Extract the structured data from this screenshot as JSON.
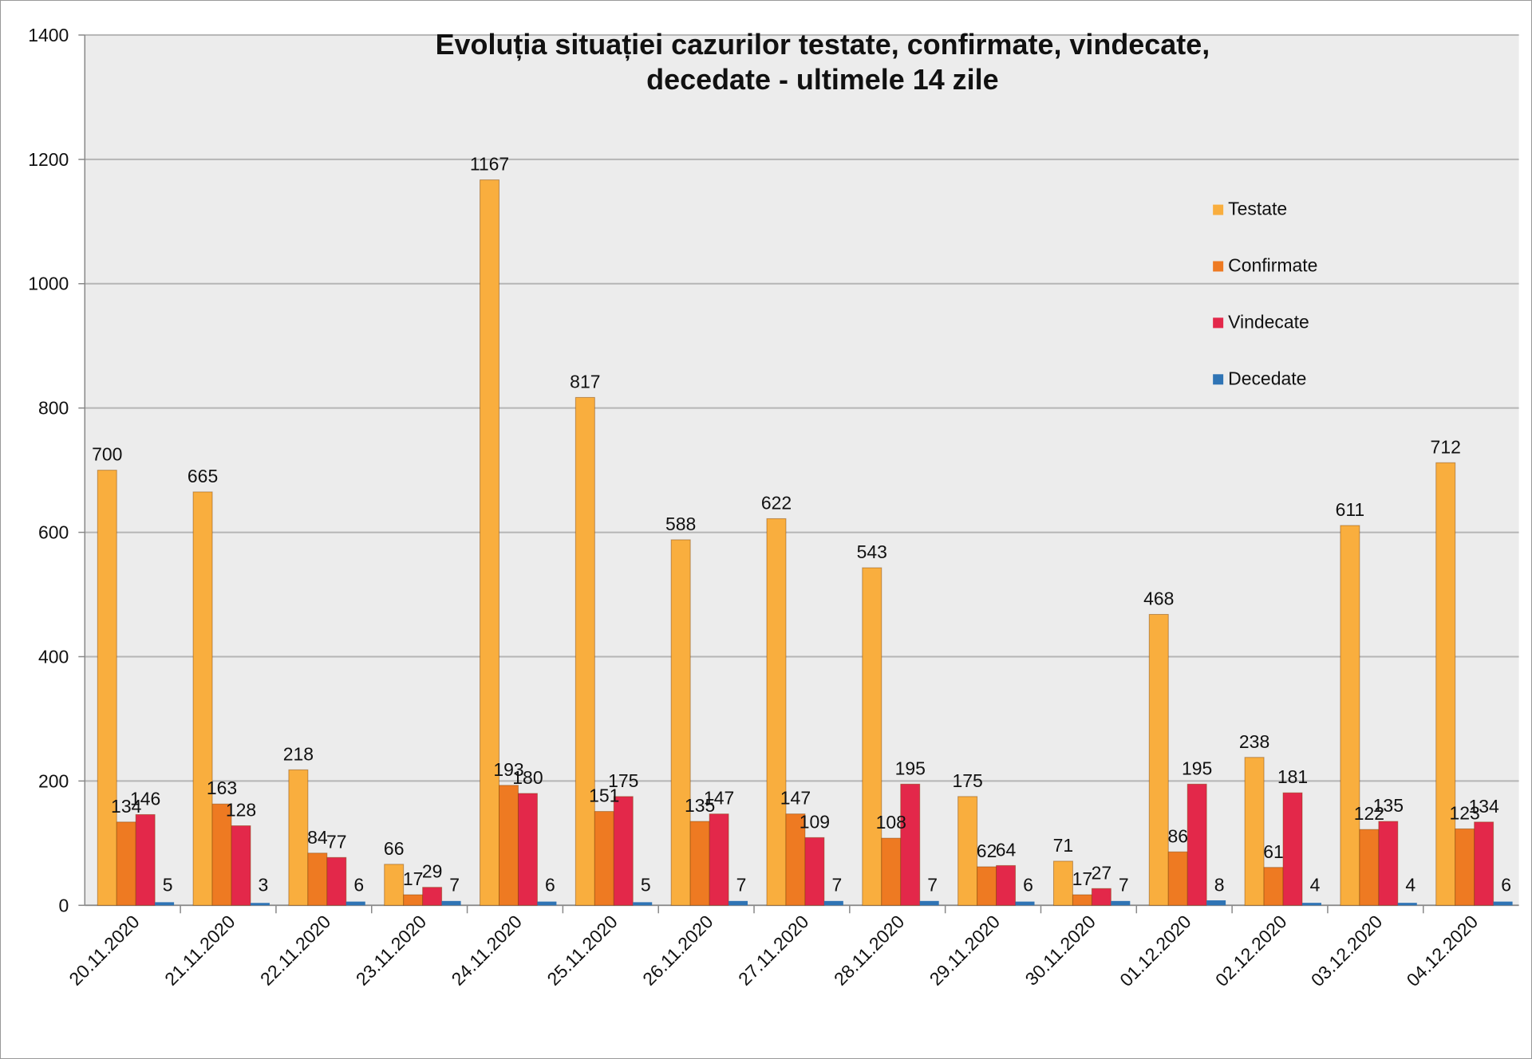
{
  "chart_data": {
    "type": "bar",
    "title_lines": [
      "Evoluția situației cazurilor testate, confirmate, vindecate,",
      "decedate -  ultimele 14 zile"
    ],
    "xlabel": "",
    "ylabel": "",
    "ylim": [
      0,
      1400
    ],
    "yticks": [
      0,
      200,
      400,
      600,
      800,
      1000,
      1200,
      1400
    ],
    "grid": true,
    "legend_position": "top-right",
    "categories": [
      "20.11.2020",
      "21.11.2020",
      "22.11.2020",
      "23.11.2020",
      "24.11.2020",
      "25.11.2020",
      "26.11.2020",
      "27.11.2020",
      "28.11.2020",
      "29.11.2020",
      "30.11.2020",
      "01.12.2020",
      "02.12.2020",
      "03.12.2020",
      "04.12.2020"
    ],
    "series": [
      {
        "name": "Testate",
        "color": "#F9AE3E",
        "values": [
          700,
          665,
          218,
          66,
          1167,
          817,
          588,
          622,
          543,
          175,
          71,
          468,
          238,
          611,
          712
        ]
      },
      {
        "name": "Confirmate",
        "color": "#EE7A22",
        "values": [
          134,
          163,
          84,
          17,
          193,
          151,
          135,
          147,
          108,
          62,
          17,
          86,
          61,
          122,
          123
        ]
      },
      {
        "name": "Vindecate",
        "color": "#E3284A",
        "values": [
          146,
          128,
          77,
          29,
          180,
          175,
          147,
          109,
          195,
          64,
          27,
          195,
          181,
          135,
          134
        ]
      },
      {
        "name": "Decedate",
        "color": "#2F74B5",
        "values": [
          5,
          3,
          6,
          7,
          6,
          5,
          7,
          7,
          7,
          6,
          7,
          8,
          4,
          4,
          6
        ]
      }
    ]
  }
}
